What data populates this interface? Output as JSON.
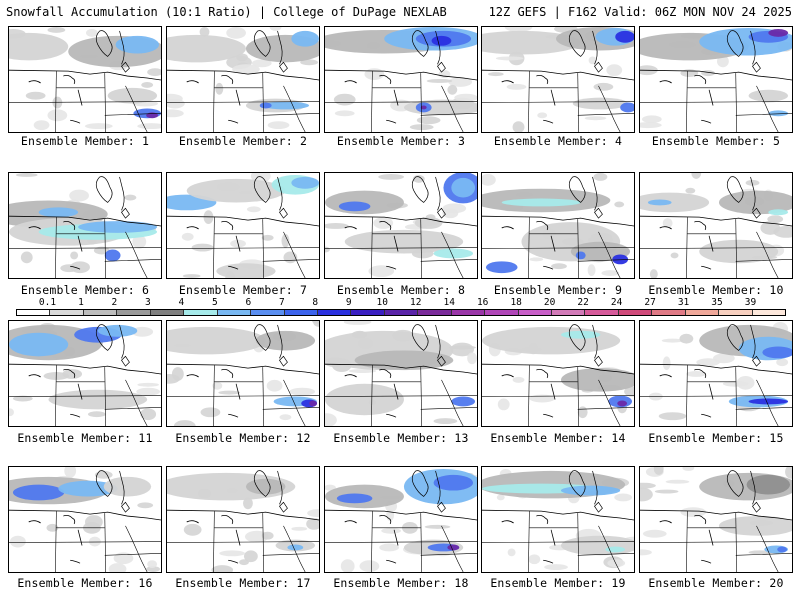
{
  "header": {
    "left_title": "Snowfall Accumulation (10:1 Ratio) | College of DuPage NEXLAB",
    "right_title": "12Z GEFS | F162 Valid: 06Z MON NOV 24 2025"
  },
  "legend": {
    "labels": [
      "0.1",
      "1",
      "2",
      "3",
      "4",
      "5",
      "6",
      "7",
      "8",
      "9",
      "10",
      "12",
      "14",
      "16",
      "18",
      "20",
      "22",
      "24",
      "27",
      "31",
      "35",
      "39"
    ],
    "colors": [
      "#ffffff",
      "#d9d9d9",
      "#bdbdbd",
      "#9a9a9a",
      "#808080",
      "#a6eaea",
      "#79b8f2",
      "#5a8ef0",
      "#3c63ec",
      "#2a30e0",
      "#3a1fc2",
      "#5a24a8",
      "#7a2a9a",
      "#9a36a8",
      "#b046b8",
      "#c85ec8",
      "#d27ab8",
      "#d65a9a",
      "#d04a7a",
      "#e07a86",
      "#f0a89a",
      "#f8d0c0",
      "#fde8dc"
    ]
  },
  "members": [
    {
      "label": "Ensemble Member: 1"
    },
    {
      "label": "Ensemble Member: 2"
    },
    {
      "label": "Ensemble Member: 3"
    },
    {
      "label": "Ensemble Member: 4"
    },
    {
      "label": "Ensemble Member: 5"
    },
    {
      "label": "Ensemble Member: 6"
    },
    {
      "label": "Ensemble Member: 7"
    },
    {
      "label": "Ensemble Member: 8"
    },
    {
      "label": "Ensemble Member: 9"
    },
    {
      "label": "Ensemble Member: 10"
    },
    {
      "label": "Ensemble Member: 11"
    },
    {
      "label": "Ensemble Member: 12"
    },
    {
      "label": "Ensemble Member: 13"
    },
    {
      "label": "Ensemble Member: 14"
    },
    {
      "label": "Ensemble Member: 15"
    },
    {
      "label": "Ensemble Member: 16"
    },
    {
      "label": "Ensemble Member: 17"
    },
    {
      "label": "Ensemble Member: 18"
    },
    {
      "label": "Ensemble Member: 19"
    },
    {
      "label": "Ensemble Member: 20"
    }
  ]
}
